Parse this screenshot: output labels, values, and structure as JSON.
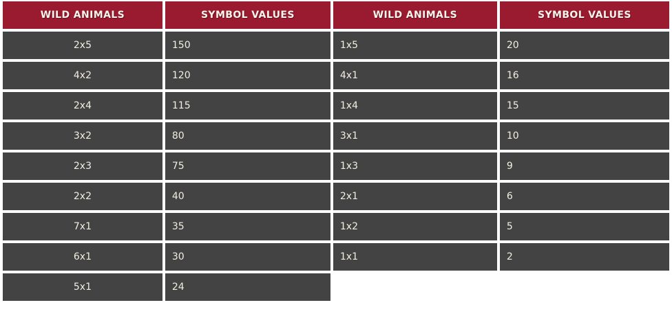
{
  "theme": {
    "header_bg": "#9a1b30",
    "cell_bg": "#434343",
    "gap_bg": "#ffffff",
    "header_text": "#f8f4ec",
    "cell_text": "#f2eee2"
  },
  "paytable": {
    "headers": [
      "WILD ANIMALS",
      "SYMBOL VALUES",
      "WILD ANIMALS",
      "SYMBOL VALUES"
    ],
    "rows": [
      [
        "2x5",
        "150",
        "1x5",
        "20"
      ],
      [
        "4x2",
        "120",
        "4x1",
        "16"
      ],
      [
        "2x4",
        "115",
        "1x4",
        "15"
      ],
      [
        "3x2",
        "80",
        "3x1",
        "10"
      ],
      [
        "2x3",
        "75",
        "1x3",
        "9"
      ],
      [
        "2x2",
        "40",
        "2x1",
        "6"
      ],
      [
        "7x1",
        "35",
        "1x2",
        "5"
      ],
      [
        "6x1",
        "30",
        "1x1",
        "2"
      ],
      [
        "5x1",
        "24",
        null,
        null
      ]
    ]
  }
}
